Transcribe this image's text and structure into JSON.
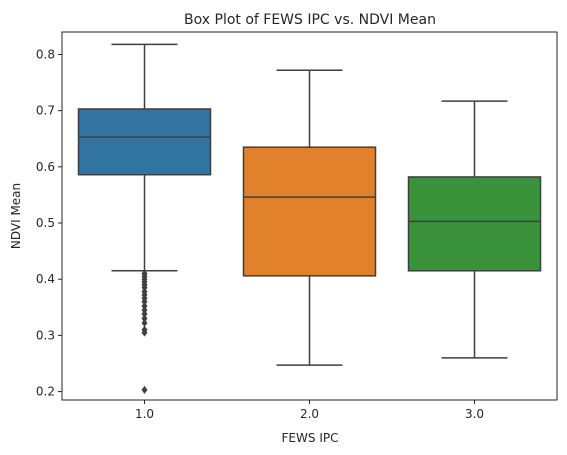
{
  "chart_data": {
    "type": "box",
    "title": "Box Plot of FEWS IPC vs. NDVI Mean",
    "xlabel": "FEWS IPC",
    "ylabel": "NDVI Mean",
    "ylim": [
      0.185,
      0.84
    ],
    "y_ticks": [
      "0.2",
      "0.3",
      "0.4",
      "0.5",
      "0.6",
      "0.7",
      "0.8"
    ],
    "grid": false,
    "legend": "none",
    "categories": [
      "1.0",
      "2.0",
      "3.0"
    ],
    "boxes": [
      {
        "category": "1.0",
        "color": "#3274a1",
        "whisker_low": 0.415,
        "q1": 0.586,
        "median": 0.653,
        "q3": 0.703,
        "whisker_high": 0.818,
        "outliers": [
          0.41,
          0.405,
          0.4,
          0.395,
          0.39,
          0.385,
          0.378,
          0.372,
          0.366,
          0.36,
          0.352,
          0.345,
          0.338,
          0.33,
          0.322,
          0.31,
          0.305,
          0.203
        ]
      },
      {
        "category": "2.0",
        "color": "#e1812c",
        "whisker_low": 0.247,
        "q1": 0.406,
        "median": 0.546,
        "q3": 0.635,
        "whisker_high": 0.772,
        "outliers": []
      },
      {
        "category": "3.0",
        "color": "#3a923a",
        "whisker_low": 0.26,
        "q1": 0.415,
        "median": 0.503,
        "q3": 0.582,
        "whisker_high": 0.717,
        "outliers": []
      }
    ]
  }
}
